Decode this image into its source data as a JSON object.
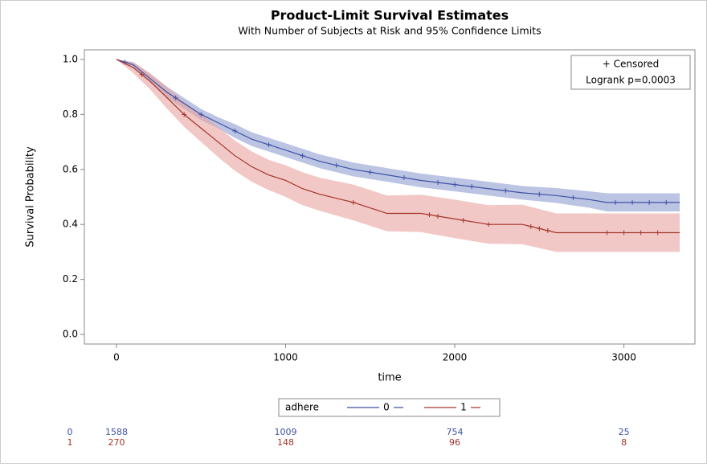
{
  "chart_data": {
    "type": "survival",
    "title": "Product-Limit Survival Estimates",
    "subtitle": "With Number of Subjects at Risk and 95% Confidence Limits",
    "x_label": "time",
    "y_label": "Survival Probability",
    "xlim": [
      -190,
      3420
    ],
    "ylim": [
      -0.035,
      1.035
    ],
    "xticks": [
      0,
      1000,
      2000,
      3000
    ],
    "yticks": [
      {
        "value": 0,
        "label": "0.0"
      },
      0.2,
      0.4,
      0.6,
      0.8,
      {
        "value": 1,
        "label": "1.0"
      }
    ],
    "inset": [
      "+ Censored",
      "Logrank p=0.0003"
    ],
    "legend_title": "adhere",
    "series": [
      {
        "name": "0",
        "color": "#3f51a3",
        "band_color": "#8e9dd1",
        "x": [
          0,
          100,
          200,
          300,
          400,
          500,
          600,
          700,
          800,
          900,
          1000,
          1200,
          1400,
          1600,
          1800,
          2000,
          2200,
          2400,
          2600,
          2800,
          2900,
          3330
        ],
        "values": [
          1.0,
          0.98,
          0.93,
          0.88,
          0.84,
          0.8,
          0.77,
          0.74,
          0.71,
          0.69,
          0.67,
          0.63,
          0.6,
          0.58,
          0.56,
          0.545,
          0.53,
          0.515,
          0.505,
          0.49,
          0.48,
          0.48
        ],
        "lower": [
          1.0,
          0.97,
          0.915,
          0.86,
          0.82,
          0.78,
          0.75,
          0.715,
          0.685,
          0.665,
          0.645,
          0.605,
          0.575,
          0.555,
          0.535,
          0.52,
          0.505,
          0.49,
          0.478,
          0.46,
          0.447,
          0.447
        ],
        "upper": [
          1.0,
          0.99,
          0.945,
          0.9,
          0.86,
          0.82,
          0.79,
          0.765,
          0.735,
          0.715,
          0.695,
          0.655,
          0.625,
          0.605,
          0.585,
          0.57,
          0.555,
          0.54,
          0.532,
          0.52,
          0.513,
          0.513
        ],
        "censored": [
          50,
          350,
          500,
          700,
          900,
          1100,
          1300,
          1500,
          1700,
          1900,
          2000,
          2100,
          2300,
          2500,
          2700,
          2950,
          3050,
          3150,
          3250
        ]
      },
      {
        "name": "1",
        "color": "#a5342b",
        "band_color": "#e8a3a0",
        "x": [
          0,
          100,
          200,
          300,
          400,
          500,
          600,
          700,
          800,
          900,
          1000,
          1100,
          1200,
          1400,
          1600,
          1800,
          2000,
          2200,
          2400,
          2600,
          3330
        ],
        "values": [
          1.0,
          0.97,
          0.92,
          0.86,
          0.8,
          0.75,
          0.7,
          0.65,
          0.61,
          0.58,
          0.56,
          0.53,
          0.51,
          0.48,
          0.44,
          0.44,
          0.42,
          0.4,
          0.4,
          0.37,
          0.37
        ],
        "lower": [
          1.0,
          0.95,
          0.89,
          0.82,
          0.755,
          0.7,
          0.645,
          0.595,
          0.555,
          0.525,
          0.5,
          0.47,
          0.45,
          0.415,
          0.375,
          0.372,
          0.35,
          0.33,
          0.328,
          0.3,
          0.3
        ],
        "upper": [
          1.0,
          0.99,
          0.95,
          0.9,
          0.845,
          0.8,
          0.755,
          0.705,
          0.665,
          0.635,
          0.615,
          0.59,
          0.57,
          0.545,
          0.505,
          0.508,
          0.49,
          0.47,
          0.472,
          0.44,
          0.44
        ],
        "censored": [
          150,
          400,
          1400,
          1850,
          1900,
          2050,
          2200,
          2450,
          2500,
          2550,
          2900,
          3000,
          3100,
          3200
        ]
      }
    ],
    "at_risk": {
      "x": [
        0,
        1000,
        2000,
        3000
      ],
      "rows": [
        [
          1588,
          1009,
          754,
          25
        ],
        [
          270,
          148,
          96,
          8
        ]
      ]
    }
  }
}
